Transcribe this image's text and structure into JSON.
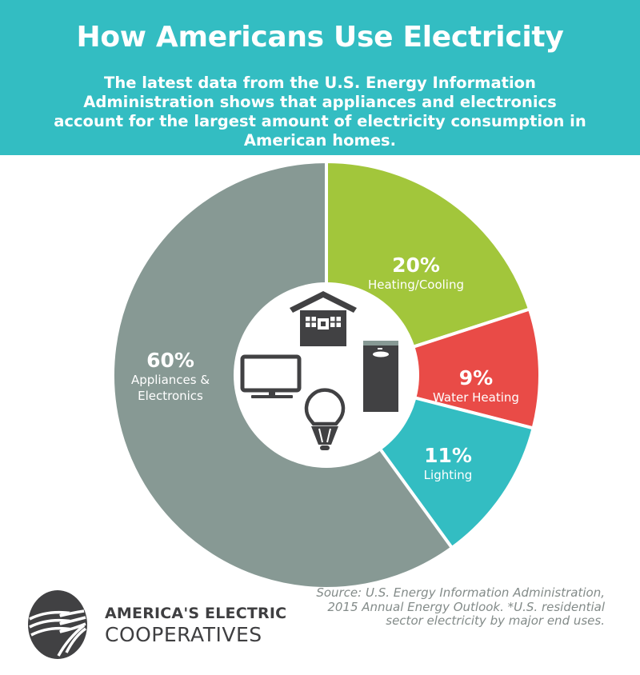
{
  "header": {
    "title": "How Americans Use Electricity",
    "subtitle": "The latest data from the U.S. Energy Information Administration shows that appliances and electronics account for the largest amount of electricity consumption in American homes."
  },
  "colors": {
    "header_bg": "#33bdc2",
    "appliances": "#879994",
    "heating_cooling": "#a2c63b",
    "water_heating": "#e94b47",
    "lighting": "#33bdc2",
    "icon": "#414143"
  },
  "icons": [
    "house-icon",
    "television-icon",
    "light-bulb-icon",
    "water-heater-icon"
  ],
  "slices": [
    {
      "pct": "20%",
      "name": "Heating/Cooling"
    },
    {
      "pct": "9%",
      "name": "Water Heating"
    },
    {
      "pct": "11%",
      "name": "Lighting"
    },
    {
      "pct": "60%",
      "name_line1": "Appliances &",
      "name_line2": "Electronics"
    }
  ],
  "logo": {
    "line1": "AMERICA'S ELECTRIC",
    "line2": "COOPERATIVES"
  },
  "source": "Source: U.S. Energy Information Administration, 2015 Annual Energy Outlook. *U.S. residential sector electricity by major end uses.",
  "chart_data": {
    "type": "pie",
    "variant": "donut",
    "title": "How Americans Use Electricity",
    "categories": [
      "Heating/Cooling",
      "Water Heating",
      "Lighting",
      "Appliances & Electronics"
    ],
    "values": [
      20,
      9,
      11,
      60
    ],
    "unit": "%",
    "colors": [
      "#a2c63b",
      "#e94b47",
      "#33bdc2",
      "#879994"
    ],
    "start_angle_deg": 0,
    "direction": "clockwise",
    "legend": "inline labels"
  }
}
